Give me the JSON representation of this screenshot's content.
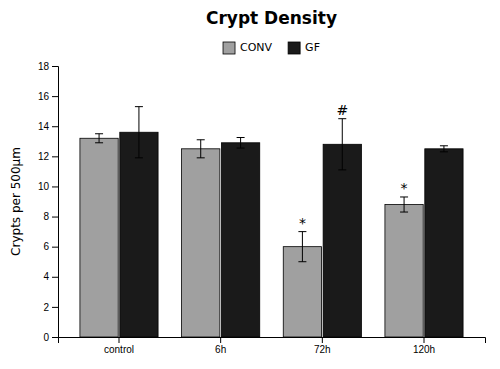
{
  "chart_data": {
    "type": "bar",
    "title": "Crypt Density",
    "ylabel": "Crypts per 500µm",
    "categories": [
      "control",
      "6h",
      "72h",
      "120h"
    ],
    "series": [
      {
        "name": "CONV",
        "color": "#a0a0a0",
        "values": [
          13.2,
          12.5,
          6.0,
          8.8
        ],
        "errors": [
          0.3,
          0.6,
          1.0,
          0.5
        ]
      },
      {
        "name": "GF",
        "color": "#1a1a1a",
        "values": [
          13.6,
          12.9,
          12.8,
          12.5
        ],
        "errors": [
          1.7,
          0.35,
          1.7,
          0.2
        ]
      }
    ],
    "ylim": [
      0,
      18
    ],
    "yticks": [
      0,
      2,
      4,
      6,
      8,
      10,
      12,
      14,
      16,
      18
    ],
    "grid": false,
    "legend": "top",
    "annotations": [
      {
        "text": "*",
        "series": 0,
        "index": 2
      },
      {
        "text": "*",
        "series": 0,
        "index": 3
      },
      {
        "text": "#",
        "series": 1,
        "index": 2
      }
    ]
  }
}
